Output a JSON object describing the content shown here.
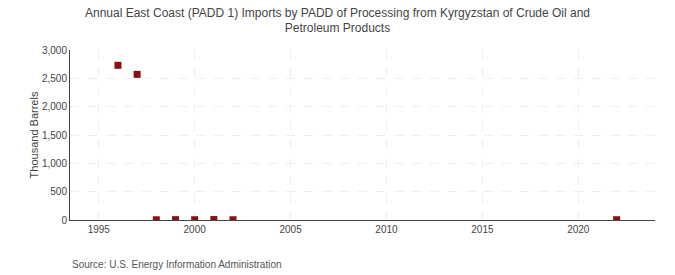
{
  "chart_data": {
    "type": "scatter",
    "title": "Annual East Coast (PADD 1) Imports by PADD of Processing from Kyrgyzstan of Crude Oil and\nPetroleum Products",
    "ylabel": "Thousand Barrels",
    "source": "Source: U.S. Energy Information Administration",
    "x": [
      1996,
      1997,
      1998,
      1999,
      2000,
      2001,
      2002,
      2022
    ],
    "values": [
      2730,
      2570,
      4,
      6,
      5,
      8,
      5,
      5
    ],
    "color": "#8b1010",
    "marker": "square",
    "xlim": [
      1993.5,
      2024
    ],
    "ylim": [
      0,
      3000
    ],
    "xticks": [
      1995,
      2000,
      2005,
      2010,
      2015,
      2020
    ],
    "yticks": [
      0,
      500,
      {
        "value": 1000,
        "label": "1,000"
      },
      {
        "value": 1500,
        "label": "1,500"
      },
      {
        "value": 2000,
        "label": "2,000"
      },
      {
        "value": 2500,
        "label": "2,500"
      },
      {
        "value": 3000,
        "label": "3,000"
      }
    ],
    "grid": true
  }
}
